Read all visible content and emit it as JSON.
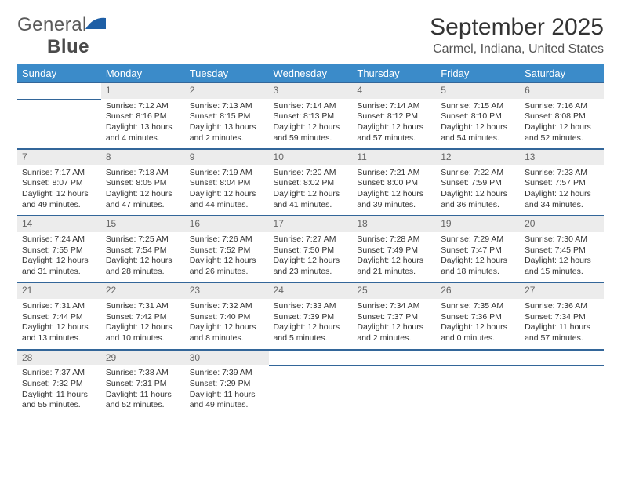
{
  "logo": {
    "text1": "General",
    "text2": "Blue"
  },
  "title": "September 2025",
  "location": "Carmel, Indiana, United States",
  "colors": {
    "header_bg": "#3b8bc9",
    "header_text": "#ffffff",
    "daynum_bg": "#ececec",
    "daynum_text": "#666666",
    "border": "#336699",
    "logo_accent": "#1e5fa6",
    "logo_text": "#5a5a5a"
  },
  "day_headers": [
    "Sunday",
    "Monday",
    "Tuesday",
    "Wednesday",
    "Thursday",
    "Friday",
    "Saturday"
  ],
  "weeks": [
    [
      {
        "n": "",
        "lines": []
      },
      {
        "n": "1",
        "lines": [
          "Sunrise: 7:12 AM",
          "Sunset: 8:16 PM",
          "Daylight: 13 hours and 4 minutes."
        ]
      },
      {
        "n": "2",
        "lines": [
          "Sunrise: 7:13 AM",
          "Sunset: 8:15 PM",
          "Daylight: 13 hours and 2 minutes."
        ]
      },
      {
        "n": "3",
        "lines": [
          "Sunrise: 7:14 AM",
          "Sunset: 8:13 PM",
          "Daylight: 12 hours and 59 minutes."
        ]
      },
      {
        "n": "4",
        "lines": [
          "Sunrise: 7:14 AM",
          "Sunset: 8:12 PM",
          "Daylight: 12 hours and 57 minutes."
        ]
      },
      {
        "n": "5",
        "lines": [
          "Sunrise: 7:15 AM",
          "Sunset: 8:10 PM",
          "Daylight: 12 hours and 54 minutes."
        ]
      },
      {
        "n": "6",
        "lines": [
          "Sunrise: 7:16 AM",
          "Sunset: 8:08 PM",
          "Daylight: 12 hours and 52 minutes."
        ]
      }
    ],
    [
      {
        "n": "7",
        "lines": [
          "Sunrise: 7:17 AM",
          "Sunset: 8:07 PM",
          "Daylight: 12 hours and 49 minutes."
        ]
      },
      {
        "n": "8",
        "lines": [
          "Sunrise: 7:18 AM",
          "Sunset: 8:05 PM",
          "Daylight: 12 hours and 47 minutes."
        ]
      },
      {
        "n": "9",
        "lines": [
          "Sunrise: 7:19 AM",
          "Sunset: 8:04 PM",
          "Daylight: 12 hours and 44 minutes."
        ]
      },
      {
        "n": "10",
        "lines": [
          "Sunrise: 7:20 AM",
          "Sunset: 8:02 PM",
          "Daylight: 12 hours and 41 minutes."
        ]
      },
      {
        "n": "11",
        "lines": [
          "Sunrise: 7:21 AM",
          "Sunset: 8:00 PM",
          "Daylight: 12 hours and 39 minutes."
        ]
      },
      {
        "n": "12",
        "lines": [
          "Sunrise: 7:22 AM",
          "Sunset: 7:59 PM",
          "Daylight: 12 hours and 36 minutes."
        ]
      },
      {
        "n": "13",
        "lines": [
          "Sunrise: 7:23 AM",
          "Sunset: 7:57 PM",
          "Daylight: 12 hours and 34 minutes."
        ]
      }
    ],
    [
      {
        "n": "14",
        "lines": [
          "Sunrise: 7:24 AM",
          "Sunset: 7:55 PM",
          "Daylight: 12 hours and 31 minutes."
        ]
      },
      {
        "n": "15",
        "lines": [
          "Sunrise: 7:25 AM",
          "Sunset: 7:54 PM",
          "Daylight: 12 hours and 28 minutes."
        ]
      },
      {
        "n": "16",
        "lines": [
          "Sunrise: 7:26 AM",
          "Sunset: 7:52 PM",
          "Daylight: 12 hours and 26 minutes."
        ]
      },
      {
        "n": "17",
        "lines": [
          "Sunrise: 7:27 AM",
          "Sunset: 7:50 PM",
          "Daylight: 12 hours and 23 minutes."
        ]
      },
      {
        "n": "18",
        "lines": [
          "Sunrise: 7:28 AM",
          "Sunset: 7:49 PM",
          "Daylight: 12 hours and 21 minutes."
        ]
      },
      {
        "n": "19",
        "lines": [
          "Sunrise: 7:29 AM",
          "Sunset: 7:47 PM",
          "Daylight: 12 hours and 18 minutes."
        ]
      },
      {
        "n": "20",
        "lines": [
          "Sunrise: 7:30 AM",
          "Sunset: 7:45 PM",
          "Daylight: 12 hours and 15 minutes."
        ]
      }
    ],
    [
      {
        "n": "21",
        "lines": [
          "Sunrise: 7:31 AM",
          "Sunset: 7:44 PM",
          "Daylight: 12 hours and 13 minutes."
        ]
      },
      {
        "n": "22",
        "lines": [
          "Sunrise: 7:31 AM",
          "Sunset: 7:42 PM",
          "Daylight: 12 hours and 10 minutes."
        ]
      },
      {
        "n": "23",
        "lines": [
          "Sunrise: 7:32 AM",
          "Sunset: 7:40 PM",
          "Daylight: 12 hours and 8 minutes."
        ]
      },
      {
        "n": "24",
        "lines": [
          "Sunrise: 7:33 AM",
          "Sunset: 7:39 PM",
          "Daylight: 12 hours and 5 minutes."
        ]
      },
      {
        "n": "25",
        "lines": [
          "Sunrise: 7:34 AM",
          "Sunset: 7:37 PM",
          "Daylight: 12 hours and 2 minutes."
        ]
      },
      {
        "n": "26",
        "lines": [
          "Sunrise: 7:35 AM",
          "Sunset: 7:36 PM",
          "Daylight: 12 hours and 0 minutes."
        ]
      },
      {
        "n": "27",
        "lines": [
          "Sunrise: 7:36 AM",
          "Sunset: 7:34 PM",
          "Daylight: 11 hours and 57 minutes."
        ]
      }
    ],
    [
      {
        "n": "28",
        "lines": [
          "Sunrise: 7:37 AM",
          "Sunset: 7:32 PM",
          "Daylight: 11 hours and 55 minutes."
        ]
      },
      {
        "n": "29",
        "lines": [
          "Sunrise: 7:38 AM",
          "Sunset: 7:31 PM",
          "Daylight: 11 hours and 52 minutes."
        ]
      },
      {
        "n": "30",
        "lines": [
          "Sunrise: 7:39 AM",
          "Sunset: 7:29 PM",
          "Daylight: 11 hours and 49 minutes."
        ]
      },
      {
        "n": "",
        "lines": []
      },
      {
        "n": "",
        "lines": []
      },
      {
        "n": "",
        "lines": []
      },
      {
        "n": "",
        "lines": []
      }
    ]
  ]
}
